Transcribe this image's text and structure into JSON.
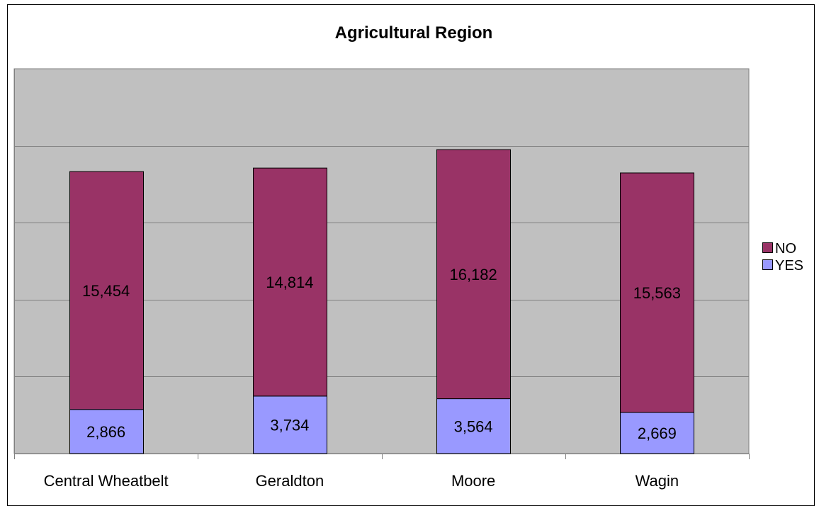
{
  "chart_data": {
    "type": "bar",
    "stacked": true,
    "title": "Agricultural Region",
    "xlabel": "",
    "ylabel": "",
    "categories": [
      "Central Wheatbelt",
      "Geraldton",
      "Moore",
      "Wagin"
    ],
    "series": [
      {
        "name": "YES",
        "color": "#9999FF",
        "values": [
          2866,
          3734,
          3564,
          2669
        ],
        "labels": [
          "2,866",
          "3,734",
          "3,564",
          "2,669"
        ]
      },
      {
        "name": "NO",
        "color": "#993366",
        "values": [
          15454,
          14814,
          16182,
          15563
        ],
        "labels": [
          "15,454",
          "14,814",
          "16,182",
          "15,563"
        ]
      }
    ],
    "ylim": [
      0,
      25000
    ],
    "y_gridline_step": 5000,
    "y_axis_labels_shown": false,
    "grid": true,
    "plot_background": "#C0C0C0",
    "legend": {
      "placement": "right",
      "order": [
        "NO",
        "YES"
      ]
    }
  }
}
